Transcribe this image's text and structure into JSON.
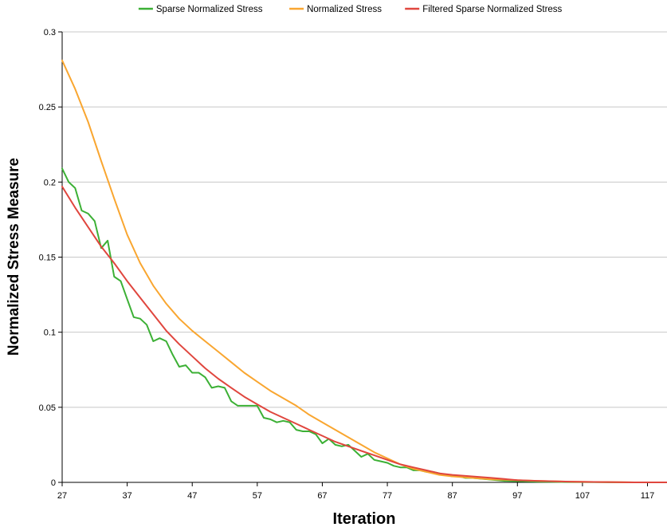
{
  "chart_data": {
    "type": "line",
    "title": "",
    "xlabel": "Iteration",
    "ylabel": "Normalized Stress Measure",
    "xlim": [
      27,
      120
    ],
    "ylim": [
      0,
      0.3
    ],
    "x_ticks": [
      27,
      37,
      47,
      57,
      67,
      77,
      87,
      97,
      107,
      117
    ],
    "y_ticks": [
      0,
      0.05,
      0.1,
      0.15,
      0.2,
      0.25,
      0.3
    ],
    "y_tick_labels": [
      "0",
      "0.05",
      "0.1",
      "0.15",
      "0.2",
      "0.25",
      "0.3"
    ],
    "grid": "horizontal",
    "legend_position": "top",
    "series": [
      {
        "name": "Sparse Normalized Stress",
        "color": "#3cb035",
        "x": [
          27,
          28,
          29,
          30,
          31,
          32,
          33,
          34,
          35,
          36,
          37,
          38,
          39,
          40,
          41,
          42,
          43,
          44,
          45,
          46,
          47,
          48,
          49,
          50,
          51,
          52,
          53,
          54,
          55,
          56,
          57,
          58,
          59,
          60,
          61,
          62,
          63,
          64,
          65,
          66,
          67,
          68,
          69,
          70,
          71,
          72,
          73,
          74,
          75,
          76,
          77,
          78,
          79,
          80,
          81,
          82,
          83,
          84,
          85,
          86,
          87,
          88,
          89,
          90,
          95,
          100,
          105,
          110,
          115,
          120
        ],
        "y": [
          0.209,
          0.2,
          0.196,
          0.181,
          0.179,
          0.174,
          0.156,
          0.161,
          0.137,
          0.134,
          0.122,
          0.11,
          0.109,
          0.105,
          0.094,
          0.096,
          0.094,
          0.085,
          0.077,
          0.078,
          0.073,
          0.073,
          0.07,
          0.063,
          0.064,
          0.063,
          0.054,
          0.051,
          0.051,
          0.051,
          0.051,
          0.043,
          0.042,
          0.04,
          0.041,
          0.04,
          0.035,
          0.034,
          0.034,
          0.032,
          0.026,
          0.029,
          0.025,
          0.024,
          0.025,
          0.021,
          0.017,
          0.019,
          0.015,
          0.014,
          0.013,
          0.011,
          0.01,
          0.01,
          0.008,
          0.008,
          0.007,
          0.007,
          0.006,
          0.005,
          0.004,
          0.004,
          0.003,
          0.003,
          0.001,
          0.0005,
          0.0002,
          0.0001,
          0.0,
          0.0
        ]
      },
      {
        "name": "Normalized Stress",
        "color": "#f9a630",
        "x": [
          27,
          29,
          31,
          33,
          35,
          37,
          39,
          41,
          43,
          45,
          47,
          49,
          51,
          53,
          55,
          57,
          59,
          61,
          63,
          65,
          67,
          69,
          71,
          73,
          75,
          77,
          79,
          81,
          83,
          85,
          87,
          90,
          93,
          97,
          100,
          105,
          110,
          115,
          120
        ],
        "y": [
          0.281,
          0.262,
          0.24,
          0.214,
          0.189,
          0.165,
          0.146,
          0.131,
          0.119,
          0.109,
          0.101,
          0.094,
          0.087,
          0.08,
          0.073,
          0.067,
          0.061,
          0.056,
          0.051,
          0.045,
          0.04,
          0.035,
          0.03,
          0.025,
          0.02,
          0.016,
          0.012,
          0.009,
          0.007,
          0.005,
          0.004,
          0.003,
          0.002,
          0.0015,
          0.001,
          0.0005,
          0.0002,
          0.0,
          0.0
        ]
      },
      {
        "name": "Filtered Sparse Normalized Stress",
        "color": "#e0463e",
        "x": [
          27,
          29,
          31,
          33,
          35,
          37,
          39,
          41,
          43,
          45,
          47,
          49,
          51,
          53,
          55,
          57,
          59,
          61,
          63,
          65,
          67,
          69,
          71,
          73,
          75,
          77,
          79,
          81,
          83,
          85,
          87,
          90,
          93,
          97,
          100,
          105,
          110,
          115,
          120
        ],
        "y": [
          0.197,
          0.183,
          0.17,
          0.157,
          0.146,
          0.134,
          0.123,
          0.112,
          0.101,
          0.092,
          0.084,
          0.076,
          0.069,
          0.063,
          0.057,
          0.052,
          0.047,
          0.043,
          0.039,
          0.035,
          0.031,
          0.027,
          0.024,
          0.021,
          0.018,
          0.015,
          0.012,
          0.01,
          0.008,
          0.006,
          0.005,
          0.004,
          0.003,
          0.0015,
          0.001,
          0.0005,
          0.0002,
          0.0,
          0.0
        ]
      }
    ]
  }
}
